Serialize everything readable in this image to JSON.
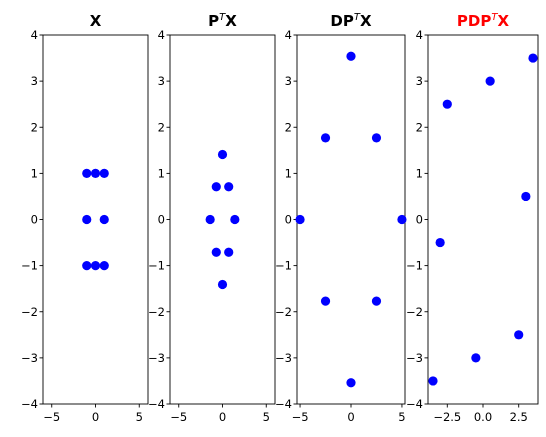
{
  "chart_data": [
    {
      "type": "scatter",
      "title_main": "X",
      "title_sup": "",
      "title_end": "",
      "title_color": "#000000",
      "marker_color": "#0000ff",
      "xlim": [
        -6,
        6
      ],
      "ylim": [
        -4,
        4
      ],
      "xticks": [
        -5,
        0,
        5
      ],
      "xtick_labels": [
        "−5",
        "0",
        "5"
      ],
      "yticks": [
        -4,
        -3,
        -2,
        -1,
        0,
        1,
        2,
        3,
        4
      ],
      "ytick_labels": [
        "−4",
        "−3",
        "−2",
        "−1",
        "0",
        "1",
        "2",
        "3",
        "4"
      ],
      "x": [
        -1,
        0,
        1,
        -1,
        1,
        -1,
        0,
        1
      ],
      "y": [
        1,
        1,
        1,
        0,
        0,
        -1,
        -1,
        -1
      ]
    },
    {
      "type": "scatter",
      "title_main": "P",
      "title_sup": "T",
      "title_end": "X",
      "title_color": "#000000",
      "marker_color": "#0000ff",
      "xlim": [
        -6,
        6
      ],
      "ylim": [
        -4,
        4
      ],
      "xticks": [
        -5,
        0,
        5
      ],
      "xtick_labels": [
        "−5",
        "0",
        "5"
      ],
      "yticks": [
        -4,
        -3,
        -2,
        -1,
        0,
        1,
        2,
        3,
        4
      ],
      "ytick_labels": [
        "−4",
        "−3",
        "−2",
        "−1",
        "0",
        "1",
        "2",
        "3",
        "4"
      ],
      "x": [
        0,
        -0.71,
        0.71,
        -1.41,
        1.41,
        -0.71,
        0.71,
        0
      ],
      "y": [
        1.41,
        0.71,
        0.71,
        0,
        0,
        -0.71,
        -0.71,
        -1.41
      ]
    },
    {
      "type": "scatter",
      "title_main": "DP",
      "title_sup": "T",
      "title_end": "X",
      "title_color": "#000000",
      "marker_color": "#0000ff",
      "xlim": [
        -5.3,
        5.3
      ],
      "ylim": [
        -4,
        4
      ],
      "xticks": [
        -5,
        0,
        5
      ],
      "xtick_labels": [
        "−5",
        "0",
        "5"
      ],
      "yticks": [
        -4,
        -3,
        -2,
        -1,
        0,
        1,
        2,
        3,
        4
      ],
      "ytick_labels": [
        "−4",
        "−3",
        "−2",
        "−1",
        "0",
        "1",
        "2",
        "3",
        "4"
      ],
      "x": [
        0,
        -2.5,
        2.5,
        -5,
        5,
        -2.5,
        2.5,
        0
      ],
      "y": [
        3.54,
        1.77,
        1.77,
        0,
        0,
        -1.77,
        -1.77,
        -3.54
      ]
    },
    {
      "type": "scatter",
      "title_main": "PDP",
      "title_sup": "T",
      "title_end": "X",
      "title_color": "#ff0000",
      "marker_color": "#0000ff",
      "xlim": [
        -3.85,
        3.85
      ],
      "ylim": [
        -4,
        4
      ],
      "xticks": [
        -2.5,
        0,
        2.5
      ],
      "xtick_labels": [
        "−2.5",
        "0.0",
        "2.5"
      ],
      "yticks": [
        -4,
        -3,
        -2,
        -1,
        0,
        1,
        2,
        3,
        4
      ],
      "ytick_labels": [
        "−4",
        "−3",
        "−2",
        "−1",
        "0",
        "1",
        "2",
        "3",
        "4"
      ],
      "x": [
        3.5,
        0.5,
        3.0,
        -2.5,
        -3.0,
        2.5,
        -0.5,
        -3.5
      ],
      "y": [
        3.5,
        3.0,
        0.5,
        2.5,
        -0.5,
        -2.5,
        -3.0,
        -3.5
      ]
    }
  ]
}
